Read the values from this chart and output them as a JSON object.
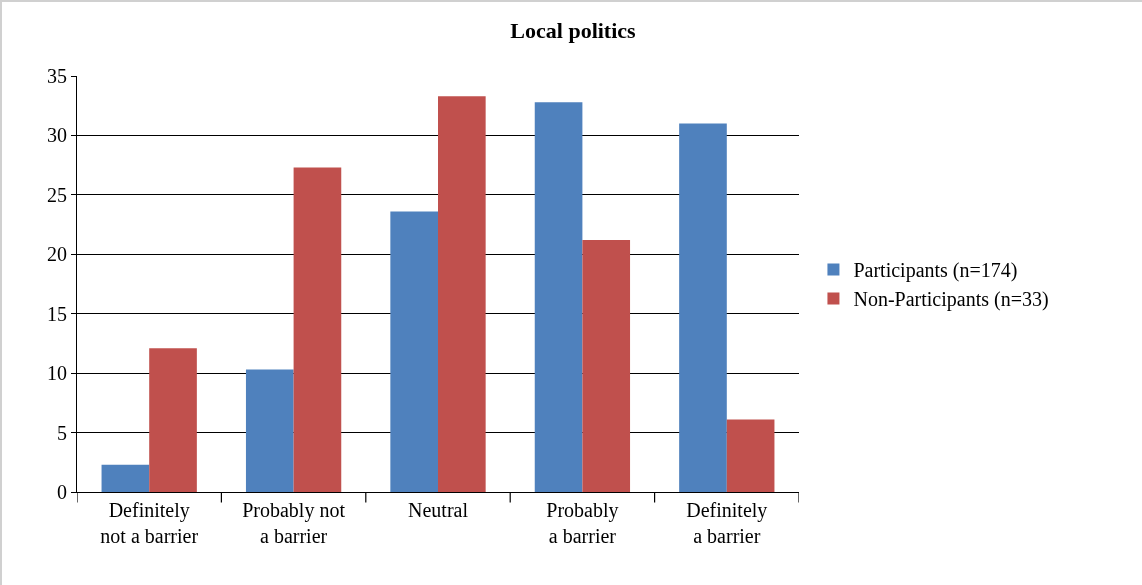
{
  "chart_data": {
    "type": "bar",
    "title": "Local politics",
    "categories": [
      "Definitely not a barrier",
      "Probably not a barrier",
      "Neutral",
      "Probably a barrier",
      "Definitely a barrier"
    ],
    "series": [
      {
        "name": "Participants (n=174)",
        "color": "#4f81bd",
        "values": [
          2.3,
          10.3,
          23.6,
          32.8,
          31.0
        ]
      },
      {
        "name": "Non-Participants (n=33)",
        "color": "#c0504d",
        "values": [
          12.1,
          27.3,
          33.3,
          21.2,
          6.1
        ]
      }
    ],
    "ylim": [
      0,
      35
    ],
    "yticks": [
      0,
      5,
      10,
      15,
      20,
      25,
      30,
      35
    ],
    "grid": "y",
    "legend": "right"
  }
}
